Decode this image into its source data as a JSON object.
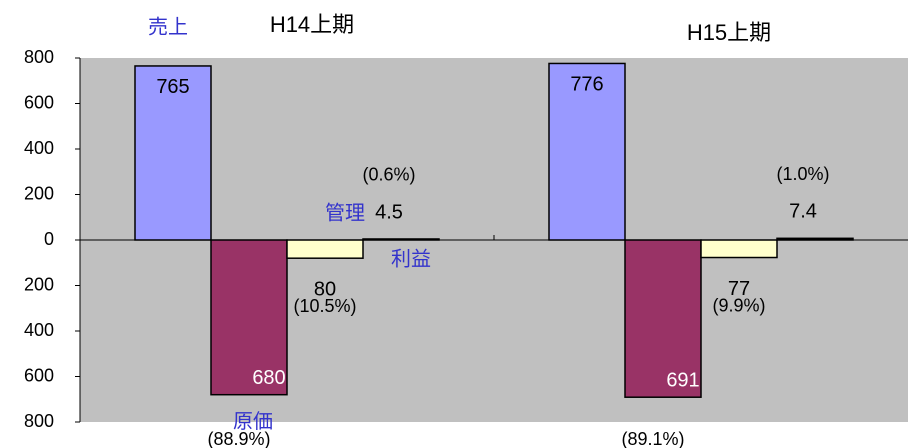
{
  "chart_data": {
    "type": "bar",
    "categories": [
      "H14上期",
      "H15上期"
    ],
    "series": [
      {
        "name": "売上",
        "color": "#9999ff",
        "values": [
          765,
          776
        ]
      },
      {
        "name": "原価",
        "color": "#993366",
        "values": [
          -680,
          -691
        ],
        "value_labels": [
          "680",
          "691"
        ],
        "pct_labels": [
          "(88.9%)",
          "(89.1%)"
        ]
      },
      {
        "name": "管理",
        "color": "#ffffcc",
        "values": [
          -80,
          -77
        ],
        "value_labels": [
          "80",
          "77"
        ],
        "pct_labels": [
          "(10.5%)",
          "(9.9%)"
        ]
      },
      {
        "name": "利益",
        "color": "#000000",
        "values": [
          4.5,
          7.4
        ],
        "pct_labels": [
          "(0.6%)",
          "(1.0%)"
        ]
      }
    ],
    "ylim": [
      -800,
      800
    ],
    "yticks": [
      800,
      600,
      400,
      200,
      0,
      {
        "value": -200,
        "label": "200"
      },
      {
        "value": -400,
        "label": "400"
      },
      {
        "value": -600,
        "label": "600"
      },
      {
        "value": -800,
        "label": "800"
      }
    ]
  }
}
